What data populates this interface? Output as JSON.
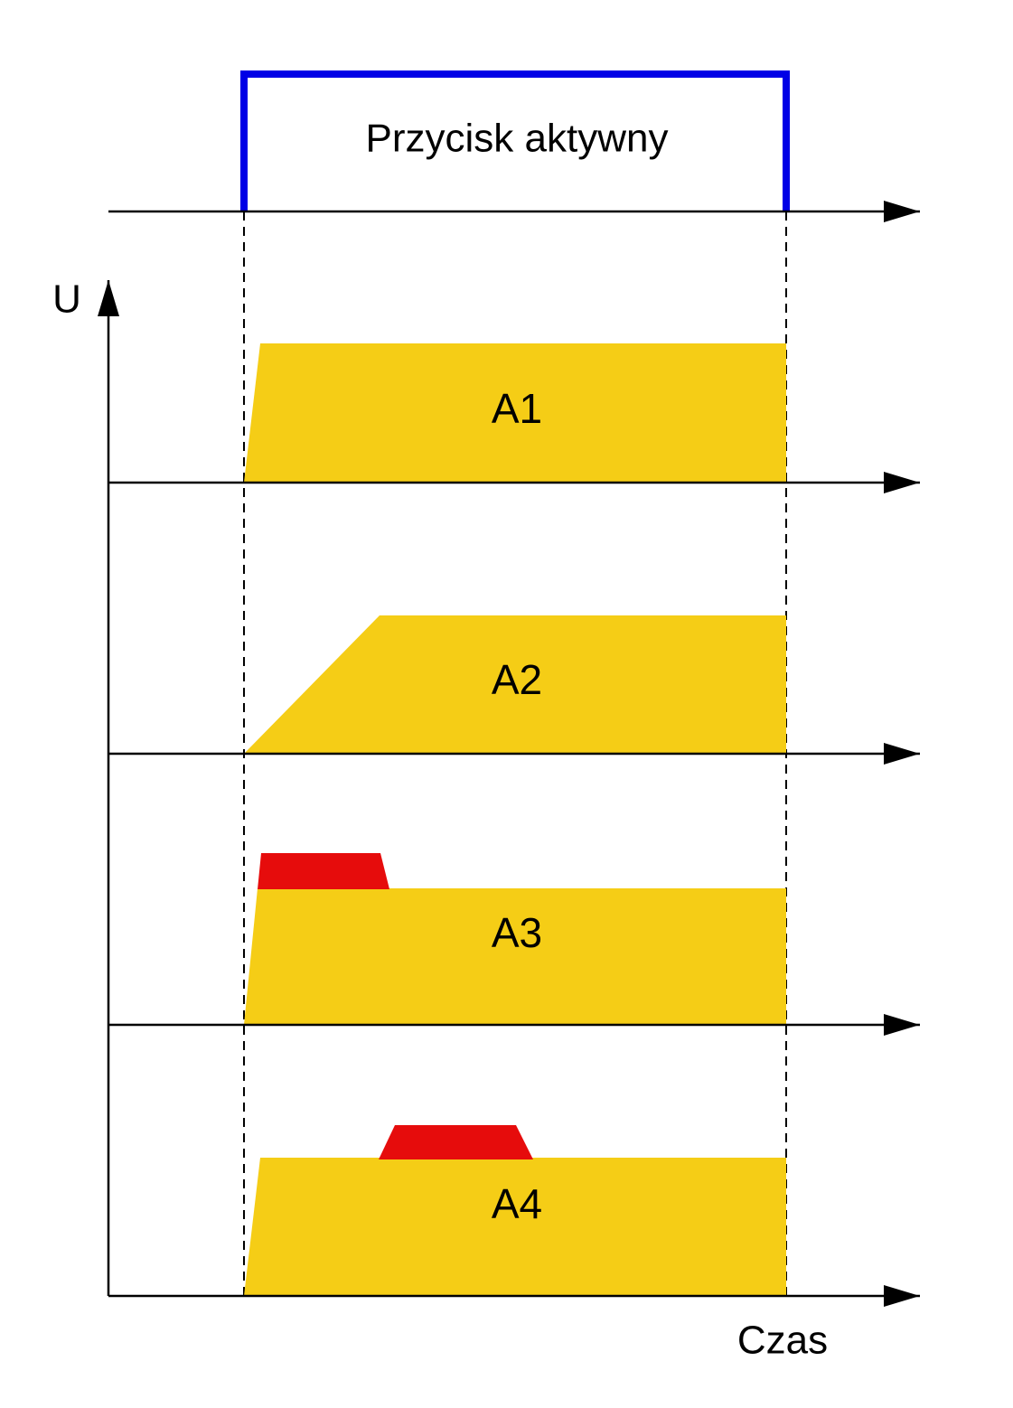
{
  "button_label": "Przycisk aktywny",
  "y_axis_label": "U",
  "x_axis_label": "Czas",
  "modes": [
    {
      "label": "A1"
    },
    {
      "label": "A2"
    },
    {
      "label": "A3"
    },
    {
      "label": "A4"
    }
  ]
}
